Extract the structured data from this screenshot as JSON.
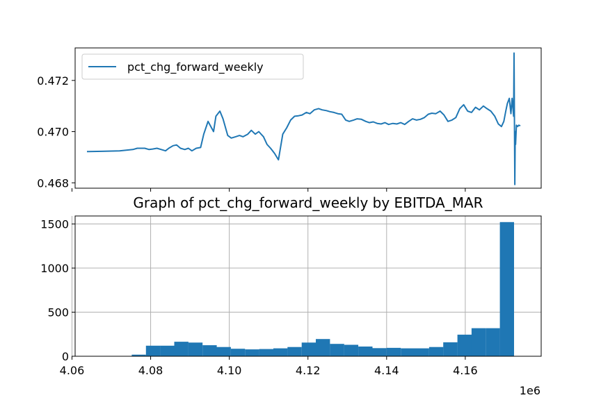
{
  "chart_data": [
    {
      "type": "line",
      "legend": {
        "label": "pct_chg_forward_weekly",
        "placement": "upper-left"
      },
      "color": "#1f77b4",
      "grid": false,
      "xlim": [
        4.0608,
        4.1793
      ],
      "ylim": [
        0.46779,
        0.47327
      ],
      "yticks": [
        "0.468",
        "0.470",
        "0.472"
      ],
      "x_tick_positions": [
        4.06,
        4.08,
        4.1,
        4.12,
        4.14,
        4.16
      ],
      "series": [
        {
          "name": "pct_chg_forward_weekly",
          "x": [
            4.0638,
            4.0676,
            4.0721,
            4.0755,
            4.0766,
            4.0785,
            4.0796,
            4.0805,
            4.0816,
            4.0827,
            4.0838,
            4.0846,
            4.0857,
            4.0866,
            4.0876,
            4.0887,
            4.0896,
            4.0905,
            4.0916,
            4.0927,
            4.0935,
            4.0946,
            4.096,
            4.0966,
            4.0976,
            4.0984,
            4.0996,
            4.1005,
            4.1016,
            4.1026,
            4.1035,
            4.1047,
            4.1056,
            4.1066,
            4.1075,
            4.1087,
            4.1096,
            4.1105,
            4.1115,
            4.1125,
            4.1136,
            4.1146,
            4.1156,
            4.1166,
            4.1176,
            4.1185,
            4.1196,
            4.1205,
            4.1216,
            4.1227,
            4.1236,
            4.1247,
            4.1256,
            4.1266,
            4.1276,
            4.1286,
            4.1296,
            4.1305,
            4.1316,
            4.1325,
            4.1336,
            4.1347,
            4.1356,
            4.1366,
            4.1376,
            4.1386,
            4.1396,
            4.1405,
            4.1416,
            4.1426,
            4.1436,
            4.1446,
            4.1456,
            4.1466,
            4.1476,
            4.1486,
            4.1496,
            4.1506,
            4.1515,
            4.1525,
            4.1536,
            4.1546,
            4.1556,
            4.1566,
            4.1576,
            4.1586,
            4.1596,
            4.1606,
            4.1616,
            4.1626,
            4.1636,
            4.1646,
            4.1655,
            4.1665,
            4.1675,
            4.1684,
            4.1692,
            4.1698,
            4.1703,
            4.1707,
            4.1712,
            4.1716,
            4.1719,
            4.1723,
            4.1724,
            4.1726,
            4.1727,
            4.1728,
            4.173,
            4.1733,
            4.1736,
            4.174
          ],
          "values": [
            0.46922,
            0.46923,
            0.46925,
            0.4693,
            0.46935,
            0.46935,
            0.4693,
            0.46932,
            0.46935,
            0.4693,
            0.46925,
            0.46935,
            0.46945,
            0.46948,
            0.46935,
            0.4693,
            0.46935,
            0.46925,
            0.46935,
            0.46938,
            0.4699,
            0.4704,
            0.47,
            0.4706,
            0.4708,
            0.4705,
            0.46985,
            0.46975,
            0.4698,
            0.46985,
            0.4698,
            0.4699,
            0.47005,
            0.4699,
            0.47,
            0.4698,
            0.4695,
            0.46935,
            0.46915,
            0.4689,
            0.4699,
            0.47015,
            0.47045,
            0.4706,
            0.47062,
            0.47065,
            0.47075,
            0.4707,
            0.47085,
            0.4709,
            0.47085,
            0.47082,
            0.47078,
            0.47075,
            0.4707,
            0.47068,
            0.47045,
            0.4704,
            0.47045,
            0.4705,
            0.47048,
            0.4704,
            0.47035,
            0.47038,
            0.47032,
            0.4703,
            0.47035,
            0.47028,
            0.47032,
            0.4703,
            0.47035,
            0.47028,
            0.4704,
            0.4705,
            0.47045,
            0.47048,
            0.47055,
            0.47068,
            0.47072,
            0.4707,
            0.4708,
            0.47065,
            0.4704,
            0.47045,
            0.47055,
            0.4709,
            0.47105,
            0.4708,
            0.47075,
            0.47095,
            0.47085,
            0.471,
            0.4709,
            0.4708,
            0.4706,
            0.4703,
            0.4702,
            0.4704,
            0.4708,
            0.4711,
            0.4713,
            0.4707,
            0.4713,
            0.4706,
            0.47307,
            0.46793,
            0.47,
            0.4695,
            0.47025,
            0.4702,
            0.47025,
            0.47023
          ]
        }
      ]
    },
    {
      "type": "bar",
      "title": "Graph of pct_chg_forward_weekly by EBITDA_MAR",
      "color": "#1f77b4",
      "grid": true,
      "xlim": [
        4.0608,
        4.1793
      ],
      "ylim": [
        0,
        1591
      ],
      "x_offset_label": "1e6",
      "xticks": [
        "4.06",
        "4.08",
        "4.10",
        "4.12",
        "4.14",
        "4.16"
      ],
      "yticks": [
        "0",
        "500",
        "1000",
        "1500"
      ],
      "bins": [
        {
          "x0": 4.0752,
          "x1": 4.0788,
          "value": 18
        },
        {
          "x0": 4.0788,
          "x1": 4.0824,
          "value": 120
        },
        {
          "x0": 4.0824,
          "x1": 4.086,
          "value": 120
        },
        {
          "x0": 4.086,
          "x1": 4.0896,
          "value": 165
        },
        {
          "x0": 4.0896,
          "x1": 4.0932,
          "value": 155
        },
        {
          "x0": 4.0932,
          "x1": 4.0968,
          "value": 125
        },
        {
          "x0": 4.0968,
          "x1": 4.1004,
          "value": 105
        },
        {
          "x0": 4.1004,
          "x1": 4.104,
          "value": 85
        },
        {
          "x0": 4.104,
          "x1": 4.1076,
          "value": 78
        },
        {
          "x0": 4.1076,
          "x1": 4.1112,
          "value": 82
        },
        {
          "x0": 4.1112,
          "x1": 4.1148,
          "value": 90
        },
        {
          "x0": 4.1148,
          "x1": 4.1184,
          "value": 105
        },
        {
          "x0": 4.1184,
          "x1": 4.122,
          "value": 155
        },
        {
          "x0": 4.122,
          "x1": 4.1256,
          "value": 195
        },
        {
          "x0": 4.1256,
          "x1": 4.1292,
          "value": 140
        },
        {
          "x0": 4.1292,
          "x1": 4.1328,
          "value": 130
        },
        {
          "x0": 4.1328,
          "x1": 4.1364,
          "value": 110
        },
        {
          "x0": 4.1364,
          "x1": 4.14,
          "value": 92
        },
        {
          "x0": 4.14,
          "x1": 4.1436,
          "value": 95
        },
        {
          "x0": 4.1436,
          "x1": 4.1472,
          "value": 90
        },
        {
          "x0": 4.1472,
          "x1": 4.1508,
          "value": 90
        },
        {
          "x0": 4.1508,
          "x1": 4.1544,
          "value": 105
        },
        {
          "x0": 4.1544,
          "x1": 4.158,
          "value": 158
        },
        {
          "x0": 4.158,
          "x1": 4.1616,
          "value": 245
        },
        {
          "x0": 4.1616,
          "x1": 4.1652,
          "value": 318
        },
        {
          "x0": 4.1652,
          "x1": 4.1688,
          "value": 318
        },
        {
          "x0": 4.1688,
          "x1": 4.1724,
          "value": 1522
        }
      ]
    }
  ]
}
